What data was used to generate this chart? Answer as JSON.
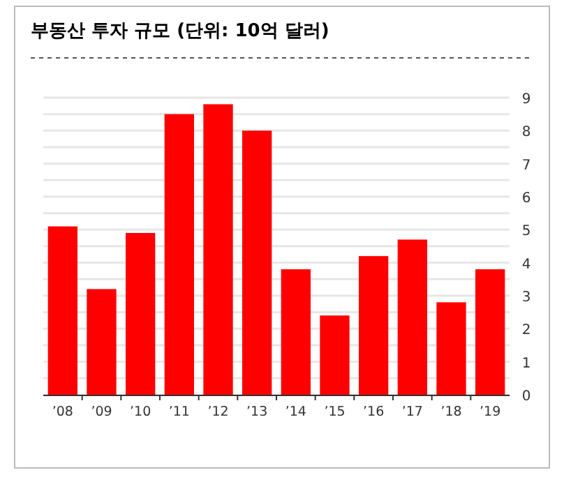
{
  "chart_data": {
    "type": "bar",
    "title": "부동산 투자 규모 (단위: 10억 달러)",
    "categories": [
      "’08",
      "’09",
      "’10",
      "’11",
      "’12",
      "’13",
      "’14",
      "’15",
      "’16",
      "’17",
      "’18",
      "’19"
    ],
    "values": [
      5.1,
      3.2,
      4.9,
      8.5,
      8.8,
      8.0,
      3.8,
      2.4,
      4.2,
      4.7,
      2.8,
      3.8
    ],
    "color": "#ff0000",
    "ylim": [
      0,
      9
    ],
    "yticks": [
      0,
      {
        "value": 0.5,
        "label": null
      },
      1,
      {
        "value": 1.5,
        "label": null
      },
      2,
      {
        "value": 2.5,
        "label": null
      },
      3,
      {
        "value": 3.5,
        "label": null
      },
      4,
      {
        "value": 4.5,
        "label": null
      },
      5,
      {
        "value": 5.5,
        "label": null
      },
      6,
      {
        "value": 6.5,
        "label": null
      },
      7,
      {
        "value": 7.5,
        "label": null
      },
      8,
      {
        "value": 8.5,
        "label": null
      },
      9
    ],
    "grid": "y"
  }
}
